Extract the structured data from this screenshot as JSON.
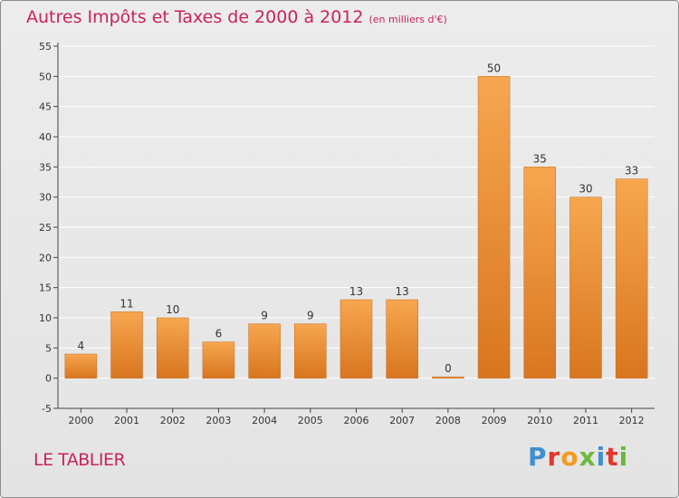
{
  "header": {
    "title": "Autres Impôts et Taxes de 2000 à 2012",
    "unit": "(en milliers d'€)"
  },
  "footer": {
    "commune": "LE TABLIER",
    "brand": "Proxiti",
    "brand_colors": [
      "#3f8fd1",
      "#e2372a",
      "#f39a1e",
      "#6ab83c",
      "#3f8fd1",
      "#e2372a",
      "#6ab83c"
    ]
  },
  "colors": {
    "accent": "#c8245a",
    "bar_light": "#f7a650",
    "bar_dark": "#d8761f",
    "grid": "#ffffff",
    "axis": "#444444"
  },
  "chart_data": {
    "type": "bar",
    "title": "Autres Impôts et Taxes de 2000 à 2012",
    "subtitle": "(en milliers d'€)",
    "xlabel": "",
    "ylabel": "",
    "categories": [
      "2000",
      "2001",
      "2002",
      "2003",
      "2004",
      "2005",
      "2006",
      "2007",
      "2008",
      "2009",
      "2010",
      "2011",
      "2012"
    ],
    "values": [
      4,
      11,
      10,
      6,
      9,
      9,
      13,
      13,
      0,
      50,
      35,
      30,
      33
    ],
    "data_labels": [
      "4",
      "11",
      "10",
      "6",
      "9",
      "9",
      "13",
      "13",
      "0",
      "50",
      "35",
      "30",
      "33"
    ],
    "ylim": [
      -5,
      55
    ],
    "yticks": [
      -5,
      0,
      5,
      10,
      15,
      20,
      25,
      30,
      35,
      40,
      45,
      50,
      55
    ],
    "grid": true,
    "legend": "none"
  }
}
